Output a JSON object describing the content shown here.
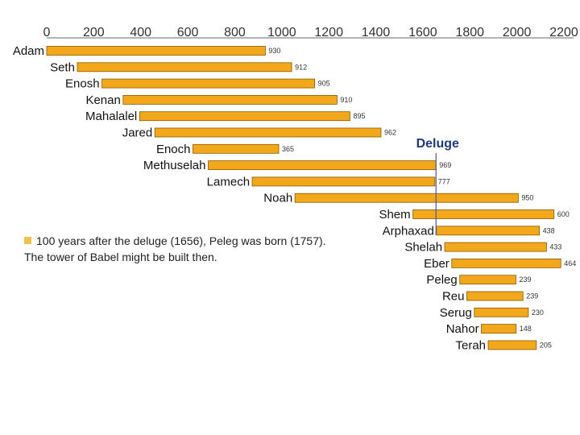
{
  "chart_data": {
    "type": "bar",
    "orientation": "horizontal-timeline",
    "title": "",
    "xlabel": "",
    "ylabel": "",
    "xlim": [
      0,
      2200
    ],
    "x_ticks": [
      "0",
      "200",
      "400",
      "600",
      "800",
      "1000",
      "1200",
      "1400",
      "1600",
      "1800",
      "2000",
      "2200"
    ],
    "bar_color": "#f2a81a",
    "bars": [
      {
        "name": "Adam",
        "start": 0,
        "lifespan": 930,
        "label": "930"
      },
      {
        "name": "Seth",
        "start": 130,
        "lifespan": 912,
        "label": "912"
      },
      {
        "name": "Enosh",
        "start": 235,
        "lifespan": 905,
        "label": "905"
      },
      {
        "name": "Kenan",
        "start": 325,
        "lifespan": 910,
        "label": "910"
      },
      {
        "name": "Mahalalel",
        "start": 395,
        "lifespan": 895,
        "label": "895"
      },
      {
        "name": "Jared",
        "start": 460,
        "lifespan": 962,
        "label": "962"
      },
      {
        "name": "Enoch",
        "start": 622,
        "lifespan": 365,
        "label": "365"
      },
      {
        "name": "Methuselah",
        "start": 687,
        "lifespan": 969,
        "label": "969"
      },
      {
        "name": "Lamech",
        "start": 874,
        "lifespan": 777,
        "label": "777"
      },
      {
        "name": "Noah",
        "start": 1056,
        "lifespan": 950,
        "label": "950"
      },
      {
        "name": "Shem",
        "start": 1558,
        "lifespan": 600,
        "label": "600"
      },
      {
        "name": "Arphaxad",
        "start": 1658,
        "lifespan": 438,
        "label": "438"
      },
      {
        "name": "Shelah",
        "start": 1693,
        "lifespan": 433,
        "label": "433"
      },
      {
        "name": "Eber",
        "start": 1723,
        "lifespan": 464,
        "label": "464"
      },
      {
        "name": "Peleg",
        "start": 1757,
        "lifespan": 239,
        "label": "239"
      },
      {
        "name": "Reu",
        "start": 1787,
        "lifespan": 239,
        "label": "239"
      },
      {
        "name": "Serug",
        "start": 1819,
        "lifespan": 230,
        "label": "230"
      },
      {
        "name": "Nahor",
        "start": 1849,
        "lifespan": 148,
        "label": "148"
      },
      {
        "name": "Terah",
        "start": 1878,
        "lifespan": 205,
        "label": "205"
      }
    ],
    "annotations": [
      {
        "text": "Deluge",
        "x": 1656
      }
    ],
    "grid": false,
    "legend": "none"
  },
  "note": {
    "line1": "100 years after the deluge (1656), Peleg was born (1757).",
    "line2": "The tower of Babel might be built then."
  }
}
